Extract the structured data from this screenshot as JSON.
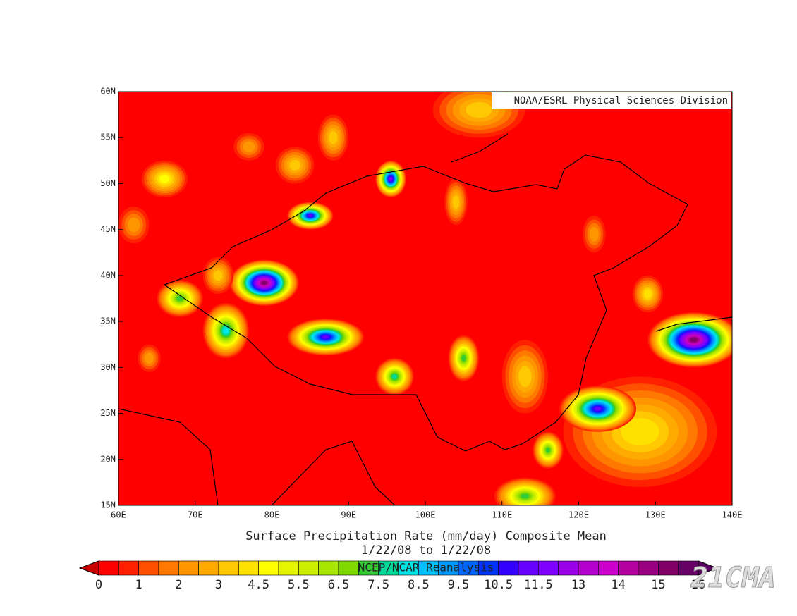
{
  "chart_data": {
    "type": "contour-map",
    "title": "Surface Precipitation Rate (mm/day) Composite Mean",
    "subtitle": "1/22/08  to 1/22/08",
    "credit": "NOAA/ESRL Physical Sciences Division",
    "source": "NCEP/NCAR Reanalysis",
    "watermark": "21CMA",
    "xlim": [
      60,
      140
    ],
    "ylim": [
      15,
      60
    ],
    "xticks": [
      {
        "value": 60,
        "label": "60E"
      },
      {
        "value": 70,
        "label": "70E"
      },
      {
        "value": 80,
        "label": "80E"
      },
      {
        "value": 90,
        "label": "90E"
      },
      {
        "value": 100,
        "label": "100E"
      },
      {
        "value": 110,
        "label": "110E"
      },
      {
        "value": 120,
        "label": "120E"
      },
      {
        "value": 130,
        "label": "130E"
      },
      {
        "value": 140,
        "label": "140E"
      }
    ],
    "yticks": [
      {
        "value": 15,
        "label": "15N"
      },
      {
        "value": 20,
        "label": "20N"
      },
      {
        "value": 25,
        "label": "25N"
      },
      {
        "value": 30,
        "label": "30N"
      },
      {
        "value": 35,
        "label": "35N"
      },
      {
        "value": 40,
        "label": "40N"
      },
      {
        "value": 45,
        "label": "45N"
      },
      {
        "value": 50,
        "label": "50N"
      },
      {
        "value": 55,
        "label": "55N"
      },
      {
        "value": 60,
        "label": "60N"
      }
    ],
    "colorbar": {
      "ticks": [
        0,
        1,
        2,
        3,
        4.5,
        5.5,
        6.5,
        7.5,
        8.5,
        9.5,
        10.5,
        11.5,
        13,
        14,
        15,
        16
      ],
      "colors": [
        "#ff0000",
        "#ff2000",
        "#ff5000",
        "#ff7800",
        "#ff9600",
        "#ffaa00",
        "#ffc800",
        "#ffe100",
        "#ffff00",
        "#e6f500",
        "#ccee00",
        "#a6e600",
        "#7fd900",
        "#33cc33",
        "#00d99a",
        "#00e6e6",
        "#00bfff",
        "#0099ff",
        "#0066ff",
        "#0033ff",
        "#3300ff",
        "#6600ff",
        "#8000ff",
        "#9900e6",
        "#b300cc",
        "#cc00cc",
        "#b3009e",
        "#990080",
        "#800066",
        "#660066"
      ],
      "under_color": "#c80000",
      "over_color": "#5a0060"
    },
    "features": [
      {
        "lon": 128,
        "lat": 23,
        "value": 4,
        "rx": 10,
        "ry": 6
      },
      {
        "lon": 107,
        "lat": 58,
        "value": 3,
        "rx": 6,
        "ry": 3
      },
      {
        "lon": 113,
        "lat": 29,
        "value": 3,
        "rx": 3,
        "ry": 4
      },
      {
        "lon": 79,
        "lat": 39.2,
        "value": 15,
        "rx": 4.5,
        "ry": 2.5
      },
      {
        "lon": 87,
        "lat": 33.3,
        "value": 11,
        "rx": 5,
        "ry": 2
      },
      {
        "lon": 85,
        "lat": 46.5,
        "value": 11,
        "rx": 3,
        "ry": 1.5
      },
      {
        "lon": 95.5,
        "lat": 50.5,
        "value": 12,
        "rx": 2,
        "ry": 2
      },
      {
        "lon": 135,
        "lat": 33,
        "value": 15,
        "rx": 6,
        "ry": 3
      },
      {
        "lon": 122.5,
        "lat": 25.5,
        "value": 11,
        "rx": 5,
        "ry": 2.5
      },
      {
        "lon": 74,
        "lat": 34,
        "value": 8,
        "rx": 3,
        "ry": 3
      },
      {
        "lon": 68,
        "lat": 37.5,
        "value": 7,
        "rx": 3,
        "ry": 2
      },
      {
        "lon": 96,
        "lat": 29,
        "value": 7.5,
        "rx": 2.5,
        "ry": 2
      },
      {
        "lon": 105,
        "lat": 31,
        "value": 7,
        "rx": 2,
        "ry": 2.5
      },
      {
        "lon": 113,
        "lat": 16,
        "value": 7,
        "rx": 4,
        "ry": 2
      },
      {
        "lon": 116,
        "lat": 21,
        "value": 7,
        "rx": 2,
        "ry": 2
      },
      {
        "lon": 66,
        "lat": 50.5,
        "value": 4.5,
        "rx": 3,
        "ry": 2
      },
      {
        "lon": 83,
        "lat": 52,
        "value": 3.5,
        "rx": 2.5,
        "ry": 2
      },
      {
        "lon": 77,
        "lat": 54,
        "value": 2,
        "rx": 2,
        "ry": 1.5
      },
      {
        "lon": 88,
        "lat": 55,
        "value": 3,
        "rx": 2,
        "ry": 2.5
      },
      {
        "lon": 104,
        "lat": 48,
        "value": 3.5,
        "rx": 1.5,
        "ry": 2.5
      },
      {
        "lon": 122,
        "lat": 44.5,
        "value": 2,
        "rx": 1.5,
        "ry": 2
      },
      {
        "lon": 129,
        "lat": 38,
        "value": 4,
        "rx": 2,
        "ry": 2
      },
      {
        "lon": 62,
        "lat": 45.5,
        "value": 2,
        "rx": 2,
        "ry": 2
      },
      {
        "lon": 73,
        "lat": 40,
        "value": 3,
        "rx": 2,
        "ry": 2
      },
      {
        "lon": 64,
        "lat": 31,
        "value": 2,
        "rx": 1.5,
        "ry": 1.5
      }
    ]
  }
}
